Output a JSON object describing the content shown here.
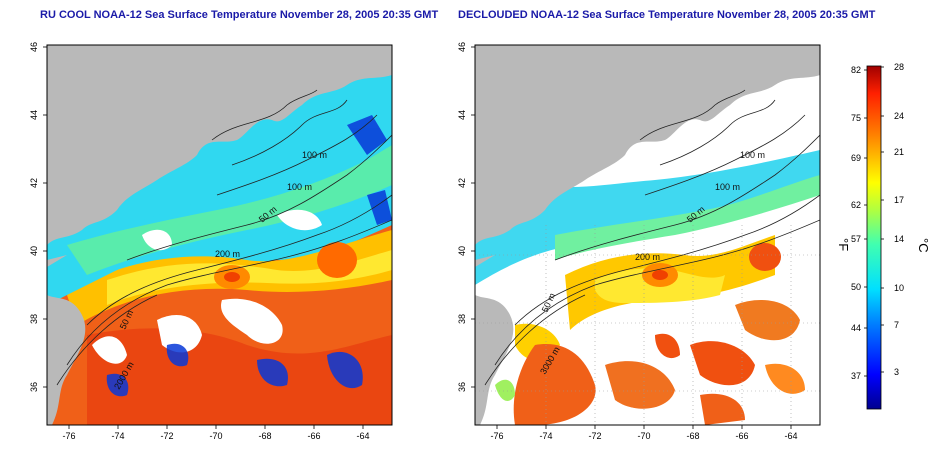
{
  "colors": {
    "title": "#1a1aa8",
    "land": "#b9b9b9",
    "cloud": "#ffffff"
  },
  "panels": [
    {
      "title": "RU COOL NOAA-12 Sea Surface Temperature November 28, 2005 20:35 GMT",
      "contour_labels": [
        "100 m",
        "100 m",
        "50 m",
        "200 m",
        "50 m",
        "2000 m"
      ]
    },
    {
      "title": "DECLOUDED NOAA-12 Sea Surface Temperature November 28, 2005 20:35 GMT",
      "contour_labels": [
        "100 m",
        "100 m",
        "50 m",
        "200 m",
        "50 m",
        "3000 m"
      ]
    }
  ],
  "axes": {
    "lon_ticks": [
      "-76",
      "-74",
      "-72",
      "-70",
      "-68",
      "-66",
      "-64"
    ],
    "lat_ticks": [
      "46",
      "44",
      "42",
      "40",
      "38",
      "36"
    ]
  },
  "colorbar": {
    "fahrenheit_label": "°F",
    "celsius_label": "°C",
    "fahrenheit_ticks": [
      "82",
      "75",
      "69",
      "62",
      "57",
      "50",
      "44",
      "37"
    ],
    "celsius_ticks": [
      "28",
      "24",
      "21",
      "17",
      "14",
      "10",
      "7",
      "3"
    ],
    "range_c": [
      0,
      28
    ]
  }
}
